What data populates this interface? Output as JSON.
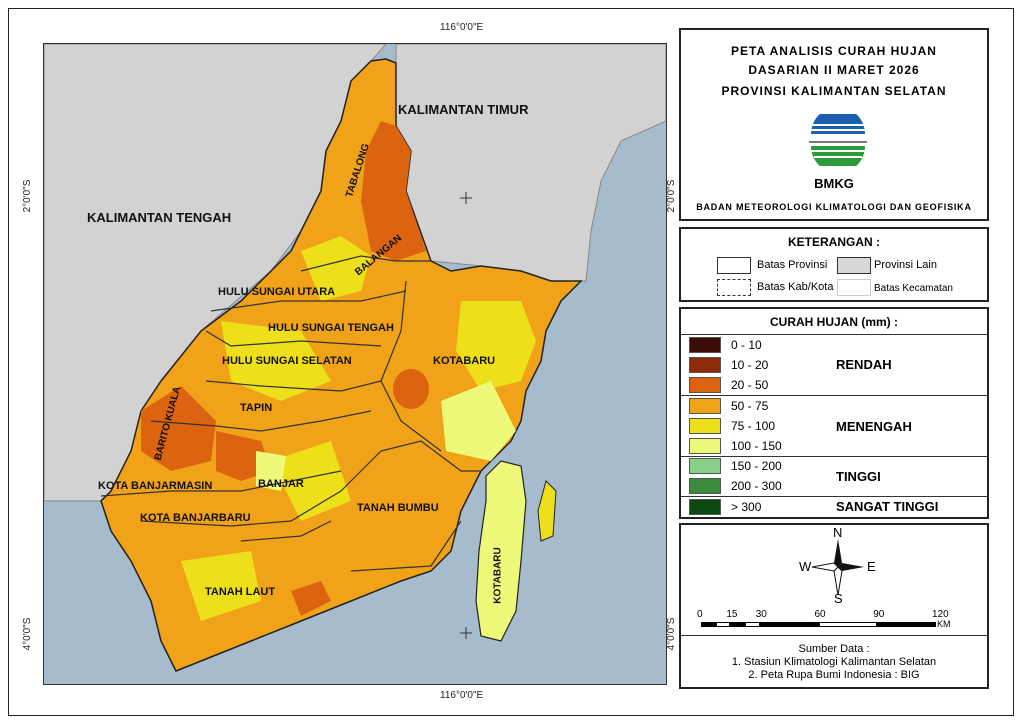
{
  "coords": {
    "lon_top": "116°0'0\"E",
    "lon_bottom": "116°0'0\"E",
    "lat_2_left": "2°0'0\"S",
    "lat_2_right": "2°0'0\"S",
    "lat_4_left": "4°0'0\"S",
    "lat_4_right": "4°0'0\"S"
  },
  "map_labels": {
    "kaltim": "KALIMANTAN TIMUR",
    "kalteng": "KALIMANTAN TENGAH",
    "tabalong": "TABALONG",
    "balangan": "BALANGAN",
    "hsu": "HULU SUNGAI UTARA",
    "hst": "HULU SUNGAI TENGAH",
    "hss": "HULU SUNGAI SELATAN",
    "kotabaru": "KOTABARU",
    "kotabaru2": "KOTABARU",
    "tapin": "TAPIN",
    "batola": "BARITO KUALA",
    "bjm": "KOTA BANJARMASIN",
    "banjar": "BANJAR",
    "bjb": "KOTA BANJARBARU",
    "tanbu": "TANAH BUMBU",
    "tala": "TANAH LAUT"
  },
  "title": {
    "line1": "PETA ANALISIS CURAH HUJAN",
    "line2": "DASARIAN II MARET 2026",
    "line3": "PROVINSI KALIMANTAN SELATAN",
    "logo_text": "BMKG",
    "agency": "BADAN METEOROLOGI KLIMATOLOGI DAN GEOFISIKA"
  },
  "keterangan": {
    "heading": "KETERANGAN :",
    "batas_provinsi": "Batas Provinsi",
    "provinsi_lain": "Provinsi Lain",
    "batas_kab": "Batas Kab/Kota",
    "batas_kec": "Batas Kecamatan"
  },
  "curah": {
    "heading": "CURAH HUJAN (mm) :",
    "items": [
      {
        "range": "0 - 10",
        "color": "#3a0c05"
      },
      {
        "range": "10 - 20",
        "color": "#8c2b0a"
      },
      {
        "range": "20 - 50",
        "color": "#dc6410"
      },
      {
        "range": "50 - 75",
        "color": "#f0a218"
      },
      {
        "range": "75 - 100",
        "color": "#ede01a"
      },
      {
        "range": "100 - 150",
        "color": "#eef97a"
      },
      {
        "range": "150 - 200",
        "color": "#88d08a"
      },
      {
        "range": "200 - 300",
        "color": "#3a8c3c"
      },
      {
        "range": "> 300",
        "color": "#0d4a10"
      }
    ],
    "classes": [
      "RENDAH",
      "MENENGAH",
      "TINGGI",
      "SANGAT TINGGI"
    ]
  },
  "compass": {
    "n": "N",
    "s": "S",
    "e": "E",
    "w": "W"
  },
  "scale": {
    "ticks": [
      "0",
      "15",
      "30",
      "60",
      "90",
      "120"
    ],
    "unit": "KM"
  },
  "source": {
    "heading": "Sumber Data :",
    "line1": "1. Stasiun Klimatologi Kalimantan Selatan",
    "line2": "2. Peta Rupa Bumi Indonesia : BIG"
  }
}
